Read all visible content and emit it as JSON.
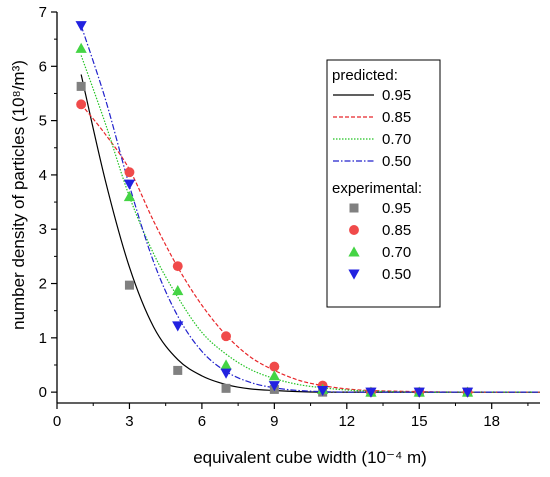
{
  "chart_data": {
    "type": "scatter",
    "xlabel": "equivalent cube width (10⁻⁴ m)",
    "ylabel": "number density of particles (10⁸/m³)",
    "xlim": [
      0,
      20
    ],
    "ylim": [
      -0.2,
      7
    ],
    "xticks": [
      0,
      3,
      6,
      9,
      12,
      15,
      18
    ],
    "yticks": [
      0,
      1,
      2,
      3,
      4,
      5,
      6,
      7
    ],
    "grid": false,
    "legend": {
      "placement": "top-right",
      "predicted_heading": "predicted:",
      "experimental_heading": "experimental:"
    },
    "predicted_series": [
      {
        "name": "0.95",
        "color": "#000000",
        "dash": "solid",
        "x": [
          1,
          2,
          3,
          4,
          5,
          6,
          7,
          8,
          9,
          10,
          11,
          12,
          13,
          15,
          17,
          20
        ],
        "y": [
          5.85,
          3.9,
          2.3,
          1.2,
          0.6,
          0.3,
          0.14,
          0.06,
          0.03,
          0.01,
          0.0,
          0.0,
          0.0,
          0.0,
          0.0,
          0.0
        ]
      },
      {
        "name": "0.85",
        "color": "#e8262a",
        "dash": "dashed",
        "x": [
          1,
          2,
          3,
          4,
          5,
          6,
          7,
          8,
          9,
          10,
          11,
          12,
          13,
          15,
          17,
          20
        ],
        "y": [
          5.3,
          4.75,
          4.1,
          3.15,
          2.3,
          1.6,
          1.05,
          0.65,
          0.4,
          0.22,
          0.12,
          0.06,
          0.03,
          0.01,
          0.0,
          0.0
        ]
      },
      {
        "name": "0.70",
        "color": "#22c322",
        "dash": "dotted",
        "x": [
          1,
          2,
          3,
          4,
          5,
          6,
          7,
          8,
          9,
          10,
          11,
          12,
          13,
          15,
          17,
          20
        ],
        "y": [
          6.2,
          4.95,
          3.6,
          2.55,
          1.75,
          1.1,
          0.7,
          0.42,
          0.25,
          0.14,
          0.08,
          0.04,
          0.02,
          0.0,
          0.0,
          0.0
        ]
      },
      {
        "name": "0.50",
        "color": "#2222cc",
        "dash": "dashdot",
        "x": [
          1,
          2,
          3,
          4,
          5,
          6,
          7,
          8,
          9,
          10,
          11,
          12,
          13,
          15,
          17,
          20
        ],
        "y": [
          6.75,
          5.4,
          3.8,
          2.4,
          1.4,
          0.75,
          0.38,
          0.18,
          0.08,
          0.03,
          0.01,
          0.0,
          0.0,
          0.0,
          0.0,
          0.0
        ]
      }
    ],
    "experimental_series": [
      {
        "name": "0.95",
        "color": "#808080",
        "marker": "square",
        "x": [
          1,
          3,
          5,
          7,
          9,
          11,
          13,
          15,
          17
        ],
        "y": [
          5.63,
          1.97,
          0.4,
          0.07,
          0.05,
          0.0,
          0.0,
          0.0,
          0.0
        ]
      },
      {
        "name": "0.85",
        "color": "#f04a4a",
        "marker": "circle",
        "x": [
          1,
          3,
          5,
          7,
          9,
          11,
          13,
          15,
          17
        ],
        "y": [
          5.3,
          4.05,
          2.32,
          1.03,
          0.47,
          0.12,
          0.0,
          0.0,
          0.0
        ]
      },
      {
        "name": "0.70",
        "color": "#44d444",
        "marker": "triangle-up",
        "x": [
          1,
          3,
          5,
          7,
          9,
          11,
          13,
          15,
          17
        ],
        "y": [
          6.33,
          3.6,
          1.87,
          0.5,
          0.3,
          0.05,
          0.0,
          0.0,
          0.0
        ]
      },
      {
        "name": "0.50",
        "color": "#2222e0",
        "marker": "triangle-down",
        "x": [
          1,
          3,
          5,
          7,
          9,
          11,
          13,
          15,
          17
        ],
        "y": [
          6.75,
          3.83,
          1.22,
          0.35,
          0.12,
          0.03,
          0.0,
          0.0,
          0.0
        ]
      }
    ]
  }
}
